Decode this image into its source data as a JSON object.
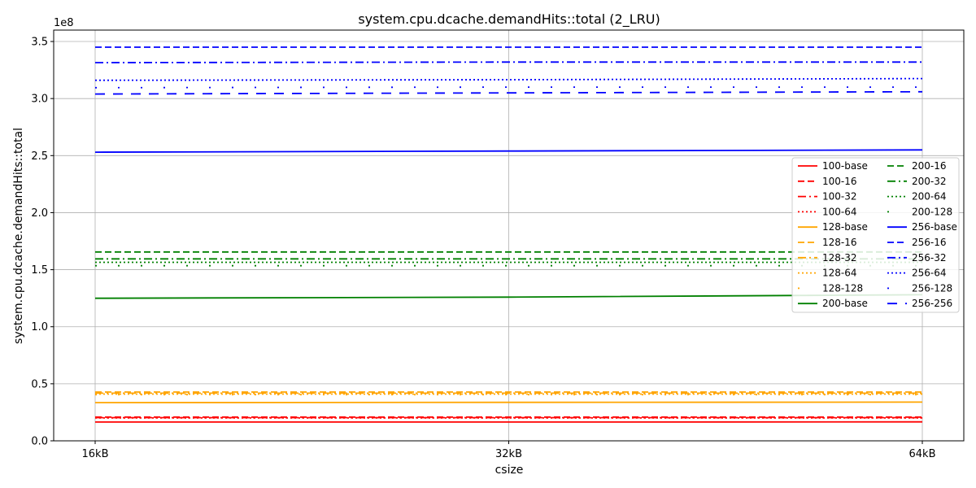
{
  "chart_data": {
    "type": "line",
    "title": "system.cpu.dcache.demandHits::total (2_LRU)",
    "xlabel": "csize",
    "ylabel": "system.cpu.dcache.demandHits::total",
    "y_exponent_label": "1e8",
    "categories": [
      "16kB",
      "32kB",
      "64kB"
    ],
    "ylim": [
      0,
      3.6
    ],
    "yticks": [
      "0.0",
      "0.5",
      "1.0",
      "1.5",
      "2.0",
      "2.5",
      "3.0",
      "3.5"
    ],
    "grid": true,
    "legend_position": "right",
    "legend_columns": 2,
    "series": [
      {
        "name": "100-base",
        "color": "#ff0000",
        "style": "solid",
        "values": [
          0.165,
          0.165,
          0.166
        ]
      },
      {
        "name": "100-16",
        "color": "#ff0000",
        "style": "dashed",
        "values": [
          0.208,
          0.208,
          0.208
        ]
      },
      {
        "name": "100-32",
        "color": "#ff0000",
        "style": "dashdot",
        "values": [
          0.203,
          0.203,
          0.203
        ]
      },
      {
        "name": "100-64",
        "color": "#ff0000",
        "style": "dotted",
        "values": [
          0.2,
          0.2,
          0.2
        ]
      },
      {
        "name": "128-base",
        "color": "#ffa500",
        "style": "solid",
        "values": [
          0.335,
          0.337,
          0.339
        ]
      },
      {
        "name": "128-16",
        "color": "#ffa500",
        "style": "dashed",
        "values": [
          0.428,
          0.428,
          0.428
        ]
      },
      {
        "name": "128-32",
        "color": "#ffa500",
        "style": "dashdot",
        "values": [
          0.418,
          0.418,
          0.418
        ]
      },
      {
        "name": "128-64",
        "color": "#ffa500",
        "style": "dotted",
        "values": [
          0.41,
          0.41,
          0.41
        ]
      },
      {
        "name": "128-128",
        "color": "#ffa500",
        "style": "sparse",
        "values": [
          0.405,
          0.405,
          0.405
        ]
      },
      {
        "name": "200-base",
        "color": "#008000",
        "style": "solid",
        "values": [
          1.25,
          1.26,
          1.28
        ]
      },
      {
        "name": "200-16",
        "color": "#008000",
        "style": "dashed",
        "values": [
          1.655,
          1.655,
          1.655
        ]
      },
      {
        "name": "200-32",
        "color": "#008000",
        "style": "dashdot",
        "values": [
          1.595,
          1.595,
          1.595
        ]
      },
      {
        "name": "200-64",
        "color": "#008000",
        "style": "dotted",
        "values": [
          1.565,
          1.565,
          1.565
        ]
      },
      {
        "name": "200-128",
        "color": "#008000",
        "style": "sparse",
        "values": [
          1.535,
          1.535,
          1.535
        ]
      },
      {
        "name": "256-base",
        "color": "#0000ff",
        "style": "solid",
        "values": [
          2.53,
          2.54,
          2.55
        ]
      },
      {
        "name": "256-16",
        "color": "#0000ff",
        "style": "dashed",
        "values": [
          3.45,
          3.45,
          3.45
        ]
      },
      {
        "name": "256-32",
        "color": "#0000ff",
        "style": "dashdot",
        "values": [
          3.315,
          3.32,
          3.32
        ]
      },
      {
        "name": "256-64",
        "color": "#0000ff",
        "style": "dotted",
        "values": [
          3.16,
          3.165,
          3.175
        ]
      },
      {
        "name": "256-128",
        "color": "#0000ff",
        "style": "sparse",
        "values": [
          3.095,
          3.1,
          3.1
        ]
      },
      {
        "name": "256-256",
        "color": "#0000ff",
        "style": "longdash",
        "values": [
          3.04,
          3.05,
          3.06
        ]
      }
    ]
  }
}
